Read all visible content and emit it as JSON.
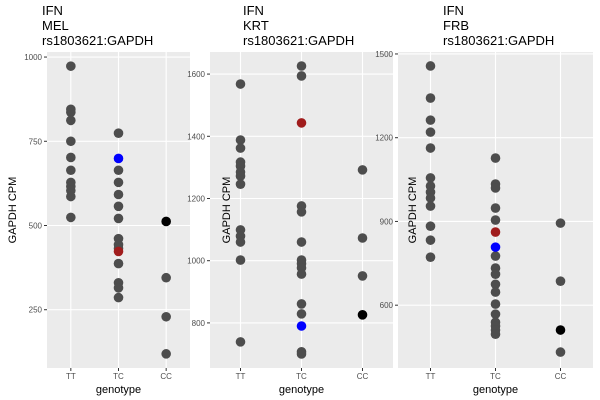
{
  "chart_data": [
    {
      "type": "strip",
      "title": [
        "IFN",
        "MEL",
        "rs1803621:GAPDH"
      ],
      "xlabel": "genotype",
      "ylabel": "GAPDH CPM",
      "categories": [
        "TT",
        "TC",
        "CC"
      ],
      "ylim": [
        77,
        1015
      ],
      "yticks": [
        250,
        500,
        750,
        1000
      ],
      "grid": true,
      "series": [
        {
          "color": "#4d4d4d",
          "x": [
            "TT",
            "TT",
            "TT",
            "TT",
            "TT",
            "TT",
            "TT",
            "TT",
            "TT",
            "TT",
            "TT",
            "TT",
            "TC",
            "TC",
            "TC",
            "TC",
            "TC",
            "TC",
            "TC",
            "TC",
            "TC",
            "TC",
            "TC",
            "TC",
            "TC",
            "CC",
            "CC",
            "CC"
          ],
          "values": [
            973,
            845,
            836,
            812,
            750,
            702,
            664,
            628,
            616,
            604,
            586,
            524,
            774,
            664,
            628,
            592,
            557,
            521,
            461,
            443,
            432,
            387,
            330,
            315,
            286,
            345,
            229,
            119
          ]
        },
        {
          "color": "#0000ff",
          "x": [
            "TC"
          ],
          "values": [
            699
          ]
        },
        {
          "color": "#a01c1c",
          "x": [
            "TC"
          ],
          "values": [
            423
          ]
        },
        {
          "color": "#000000",
          "x": [
            "CC"
          ],
          "values": [
            512
          ]
        }
      ]
    },
    {
      "type": "strip",
      "title": [
        "IFN",
        "KRT",
        "rs1803621:GAPDH"
      ],
      "xlabel": "genotype",
      "ylabel": "GAPDH CPM",
      "categories": [
        "TT",
        "TC",
        "CC"
      ],
      "ylim": [
        655,
        1671
      ],
      "yticks": [
        800,
        1000,
        1200,
        1400,
        1600
      ],
      "grid": true,
      "series": [
        {
          "color": "#4d4d4d",
          "x": [
            "TT",
            "TT",
            "TT",
            "TT",
            "TT",
            "TT",
            "TT",
            "TT",
            "TT",
            "TT",
            "TT",
            "TT",
            "TT",
            "TC",
            "TC",
            "TC",
            "TC",
            "TC",
            "TC",
            "TC",
            "TC",
            "TC",
            "TC",
            "TC",
            "TC",
            "TC",
            "CC",
            "CC",
            "CC"
          ],
          "values": [
            1568,
            1388,
            1362,
            1317,
            1304,
            1285,
            1272,
            1246,
            1099,
            1079,
            1060,
            1002,
            739,
            1626,
            1594,
            1176,
            1157,
            1060,
            1002,
            990,
            977,
            957,
            861,
            829,
            707,
            700,
            1292,
            1073,
            951
          ]
        },
        {
          "color": "#a01c1c",
          "x": [
            "TC"
          ],
          "values": [
            1443
          ]
        },
        {
          "color": "#0000ff",
          "x": [
            "TC"
          ],
          "values": [
            790
          ]
        },
        {
          "color": "#000000",
          "x": [
            "CC"
          ],
          "values": [
            826
          ]
        }
      ]
    },
    {
      "type": "strip",
      "title": [
        "IFN",
        "FRB",
        "rs1803621:GAPDH"
      ],
      "xlabel": "genotype",
      "ylabel": "GAPDH CPM",
      "categories": [
        "TT",
        "TC",
        "CC"
      ],
      "ylim": [
        375,
        1507
      ],
      "yticks": [
        600,
        900,
        1200,
        1500
      ],
      "grid": true,
      "series": [
        {
          "color": "#4d4d4d",
          "x": [
            "TT",
            "TT",
            "TT",
            "TT",
            "TT",
            "TT",
            "TT",
            "TT",
            "TT",
            "TT",
            "TT",
            "TT",
            "TT",
            "TC",
            "TC",
            "TC",
            "TC",
            "TC",
            "TC",
            "TC",
            "TC",
            "TC",
            "TC",
            "TC",
            "TC",
            "TC",
            "TC",
            "TC",
            "TC",
            "CC",
            "CC",
            "CC"
          ],
          "values": [
            1457,
            1342,
            1263,
            1220,
            1163,
            1056,
            1027,
            1005,
            984,
            955,
            883,
            833,
            772,
            1127,
            1034,
            1020,
            948,
            905,
            776,
            733,
            711,
            675,
            647,
            604,
            568,
            539,
            525,
            511,
            496,
            894,
            686,
            432
          ]
        },
        {
          "color": "#a01c1c",
          "x": [
            "TC"
          ],
          "values": [
            862
          ]
        },
        {
          "color": "#0000ff",
          "x": [
            "TC"
          ],
          "values": [
            808
          ]
        },
        {
          "color": "#000000",
          "x": [
            "CC"
          ],
          "values": [
            511
          ]
        }
      ]
    }
  ]
}
